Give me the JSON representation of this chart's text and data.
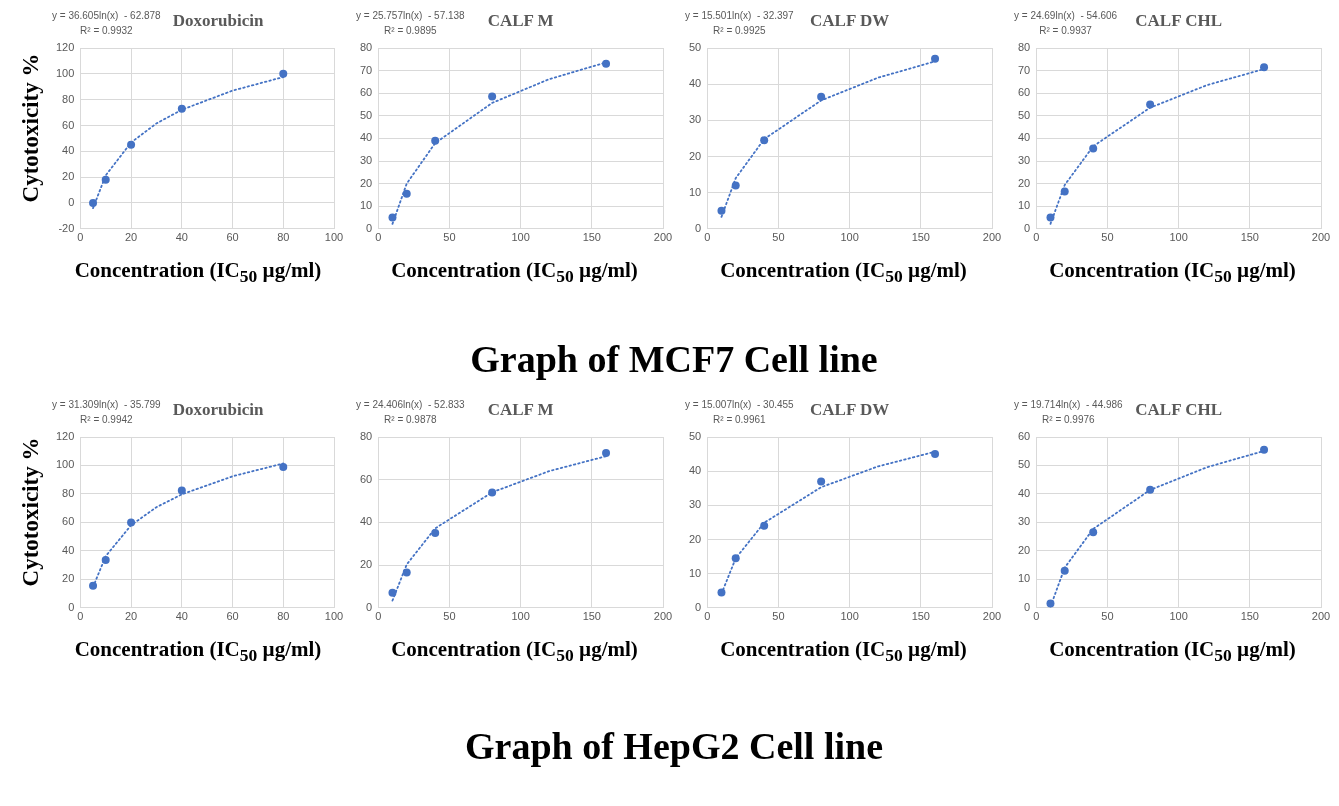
{
  "chart_data": [
    {
      "type": "scatter",
      "title": "Doxorubicin",
      "xlabel": "Concentration (IC$_{50}$ µg/ml)",
      "ylabel": "Cytotoxicity %",
      "annotations": [
        "y = 36.605ln(x)  - 62.878",
        "R² = 0.9932"
      ],
      "xlim": [
        0,
        100
      ],
      "xticks": [
        0,
        20,
        40,
        60,
        80,
        100
      ],
      "ylim": [
        -20,
        120
      ],
      "yticks": [
        -20,
        0,
        20,
        40,
        60,
        80,
        100,
        120
      ],
      "grid": true,
      "series": [
        {
          "type": "scatter",
          "color": "#4472c4",
          "marker": "circle",
          "x": [
            5,
            10,
            20,
            40,
            80
          ],
          "values": [
            0,
            18,
            45,
            73,
            100
          ]
        },
        {
          "type": "line",
          "color": "#4472c4",
          "marker": "none",
          "line_style": "dotted",
          "x": [
            5,
            10,
            20,
            30,
            40,
            60,
            80
          ],
          "values": [
            -4,
            21.4,
            46.8,
            61.6,
            72.2,
            87,
            97.5
          ]
        }
      ]
    },
    {
      "type": "scatter",
      "title": "CALF M",
      "xlabel": "Concentration (IC$_{50}$ µg/ml)",
      "annotations": [
        "y = 25.757ln(x)  - 57.138",
        "R² = 0.9895"
      ],
      "xlim": [
        0,
        200
      ],
      "xticks": [
        0,
        50,
        100,
        150,
        200
      ],
      "ylim": [
        0,
        80
      ],
      "yticks": [
        0,
        10,
        20,
        30,
        40,
        50,
        60,
        70,
        80
      ],
      "grid": true,
      "series": [
        {
          "type": "scatter",
          "color": "#4472c4",
          "marker": "circle",
          "x": [
            10,
            20,
            40,
            80,
            160
          ],
          "values": [
            5,
            15.5,
            39,
            58.5,
            73
          ]
        },
        {
          "type": "line",
          "color": "#4472c4",
          "marker": "none",
          "line_style": "dotted",
          "x": [
            10,
            20,
            40,
            80,
            120,
            160
          ],
          "values": [
            2.2,
            20,
            37.9,
            55.7,
            66.2,
            73.6
          ]
        }
      ]
    },
    {
      "type": "scatter",
      "title": "CALF DW",
      "xlabel": "Concentration (IC$_{50}$ µg/ml)",
      "annotations": [
        "y = 15.501ln(x)  - 32.397",
        "R² = 0.9925"
      ],
      "xlim": [
        0,
        200
      ],
      "xticks": [
        0,
        50,
        100,
        150,
        200
      ],
      "ylim": [
        0,
        50
      ],
      "yticks": [
        0,
        10,
        20,
        30,
        40,
        50
      ],
      "grid": true,
      "series": [
        {
          "type": "scatter",
          "color": "#4472c4",
          "marker": "circle",
          "x": [
            10,
            20,
            40,
            80,
            160
          ],
          "values": [
            5,
            12,
            24.5,
            36.5,
            47
          ]
        },
        {
          "type": "line",
          "color": "#4472c4",
          "marker": "none",
          "line_style": "dotted",
          "x": [
            10,
            20,
            40,
            80,
            120,
            160
          ],
          "values": [
            3.3,
            14,
            24.8,
            35.5,
            41.8,
            46.3
          ]
        }
      ]
    },
    {
      "type": "scatter",
      "title": "CALF CHL",
      "xlabel": "Concentration (IC$_{50}$ µg/ml)",
      "annotations": [
        "y = 24.69ln(x)  - 54.606",
        "R² = 0.9937"
      ],
      "xlim": [
        0,
        200
      ],
      "xticks": [
        0,
        50,
        100,
        150,
        200
      ],
      "ylim": [
        0,
        80
      ],
      "yticks": [
        0,
        10,
        20,
        30,
        40,
        50,
        60,
        70,
        80
      ],
      "grid": true,
      "series": [
        {
          "type": "scatter",
          "color": "#4472c4",
          "marker": "circle",
          "x": [
            10,
            20,
            40,
            80,
            160
          ],
          "values": [
            5,
            16.5,
            35.5,
            55,
            71.5
          ]
        },
        {
          "type": "line",
          "color": "#4472c4",
          "marker": "none",
          "line_style": "dotted",
          "x": [
            10,
            20,
            40,
            80,
            120,
            160
          ],
          "values": [
            2.2,
            19.4,
            36.5,
            53.6,
            63.6,
            70.7
          ]
        }
      ]
    },
    {
      "type": "other",
      "title": "Graph of MCF7 Cell line"
    },
    {
      "type": "scatter",
      "title": "Doxorubicin",
      "xlabel": "Concentration (IC$_{50}$ µg/ml)",
      "ylabel": "Cytotoxicity %",
      "annotations": [
        "y = 31.309ln(x)  - 35.799",
        "R² = 0.9942"
      ],
      "xlim": [
        0,
        100
      ],
      "xticks": [
        0,
        20,
        40,
        60,
        80,
        100
      ],
      "ylim": [
        0,
        120
      ],
      "yticks": [
        0,
        20,
        40,
        60,
        80,
        100,
        120
      ],
      "grid": true,
      "series": [
        {
          "type": "scatter",
          "color": "#4472c4",
          "marker": "circle",
          "x": [
            5,
            10,
            20,
            40,
            80
          ],
          "values": [
            15.5,
            33.5,
            60,
            82.5,
            99
          ]
        },
        {
          "type": "line",
          "color": "#4472c4",
          "marker": "none",
          "line_style": "dotted",
          "x": [
            5,
            10,
            20,
            30,
            40,
            60,
            80
          ],
          "values": [
            14.6,
            36.3,
            58,
            70.7,
            79.7,
            92.4,
            101.4
          ]
        }
      ]
    },
    {
      "type": "scatter",
      "title": "CALF M",
      "xlabel": "Concentration (IC$_{50}$ µg/ml)",
      "annotations": [
        "y = 24.406ln(x)  - 52.833",
        "R² = 0.9878"
      ],
      "xlim": [
        0,
        200
      ],
      "xticks": [
        0,
        50,
        100,
        150,
        200
      ],
      "ylim": [
        0,
        80
      ],
      "yticks": [
        0,
        20,
        40,
        60,
        80
      ],
      "grid": true,
      "series": [
        {
          "type": "scatter",
          "color": "#4472c4",
          "marker": "circle",
          "x": [
            10,
            20,
            40,
            80,
            160
          ],
          "values": [
            7,
            16.5,
            35,
            54,
            72.5
          ]
        },
        {
          "type": "line",
          "color": "#4472c4",
          "marker": "none",
          "line_style": "dotted",
          "x": [
            10,
            20,
            40,
            80,
            120,
            160
          ],
          "values": [
            3.4,
            20.3,
            37.2,
            54.1,
            64,
            71
          ]
        }
      ]
    },
    {
      "type": "scatter",
      "title": "CALF DW",
      "xlabel": "Concentration (IC$_{50}$ µg/ml)",
      "annotations": [
        "y = 15.007ln(x)  - 30.455",
        "R² = 0.9961"
      ],
      "xlim": [
        0,
        200
      ],
      "xticks": [
        0,
        50,
        100,
        150,
        200
      ],
      "ylim": [
        0,
        50
      ],
      "yticks": [
        0,
        10,
        20,
        30,
        40,
        50
      ],
      "grid": true,
      "series": [
        {
          "type": "scatter",
          "color": "#4472c4",
          "marker": "circle",
          "x": [
            10,
            20,
            40,
            80,
            160
          ],
          "values": [
            4.5,
            14.5,
            24,
            37,
            45
          ]
        },
        {
          "type": "line",
          "color": "#4472c4",
          "marker": "none",
          "line_style": "dotted",
          "x": [
            10,
            20,
            40,
            80,
            120,
            160
          ],
          "values": [
            4.1,
            14.5,
            24.9,
            35.3,
            41.4,
            45.7
          ]
        }
      ]
    },
    {
      "type": "scatter",
      "title": "CALF CHL",
      "xlabel": "Concentration (IC$_{50}$ µg/ml)",
      "annotations": [
        "y = 19.714ln(x)  - 44.986",
        "R² = 0.9976"
      ],
      "xlim": [
        0,
        200
      ],
      "xticks": [
        0,
        50,
        100,
        150,
        200
      ],
      "ylim": [
        0,
        60
      ],
      "yticks": [
        0,
        10,
        20,
        30,
        40,
        50,
        60
      ],
      "grid": true,
      "series": [
        {
          "type": "scatter",
          "color": "#4472c4",
          "marker": "circle",
          "x": [
            10,
            20,
            40,
            80,
            160
          ],
          "values": [
            1.5,
            13,
            26.5,
            41.5,
            55.5
          ]
        },
        {
          "type": "line",
          "color": "#4472c4",
          "marker": "none",
          "line_style": "dotted",
          "x": [
            10,
            20,
            40,
            80,
            120,
            160
          ],
          "values": [
            0.4,
            14.1,
            27.7,
            41.4,
            49.4,
            55.1
          ]
        }
      ]
    },
    {
      "type": "other",
      "title": "Graph of HepG2 Cell line"
    }
  ]
}
